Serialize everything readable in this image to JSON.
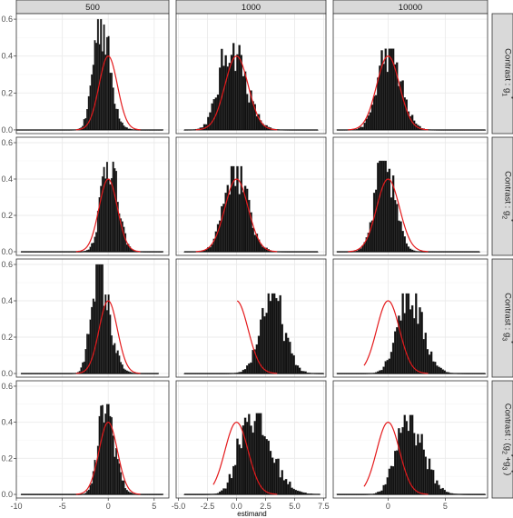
{
  "chart_data": {
    "type": "histogram",
    "facet_columns": [
      "500",
      "1000",
      "10000"
    ],
    "facet_rows": [
      {
        "pre": "Contrast : g",
        "sub": "1",
        "sup": "*",
        "post": ""
      },
      {
        "pre": "Contrast : g",
        "sub": "2",
        "sup": "*",
        "post": ""
      },
      {
        "pre": "Contrast : g",
        "sub": "3",
        "sup": "*",
        "post": ""
      },
      {
        "pre": "Contrast : (g",
        "sub": "2",
        "sup": "*",
        "post": "+g",
        "sub2": "3",
        "sup2": "*",
        "post2": ")"
      }
    ],
    "xlabel": "estimand",
    "ylabel": "",
    "grid": true,
    "columns": [
      {
        "xlim": [
          -10,
          6.6
        ],
        "xticks": [
          {
            "v": -10,
            "t": "-10"
          },
          {
            "v": -5,
            "t": "-5"
          },
          {
            "v": 0,
            "t": "0"
          },
          {
            "v": 5,
            "t": "5"
          }
        ]
      },
      {
        "xlim": [
          -5.2,
          7.7
        ],
        "xticks": [
          {
            "v": -5,
            "t": "-5.0"
          },
          {
            "v": -2.5,
            "t": "-2.5"
          },
          {
            "v": 0,
            "t": "0.0"
          },
          {
            "v": 2.5,
            "t": "2.5"
          },
          {
            "v": 5,
            "t": "5.0"
          },
          {
            "v": 7.5,
            "t": "7.5"
          }
        ]
      },
      {
        "xlim": [
          -4.8,
          8.7
        ],
        "xticks": [
          {
            "v": 0,
            "t": "0"
          },
          {
            "v": 5,
            "t": "5"
          }
        ]
      }
    ],
    "rows": [
      {
        "ylim": [
          -0.02,
          0.63
        ],
        "yticks": [
          {
            "v": 0,
            "t": "0.0"
          },
          {
            "v": 0.2,
            "t": "0.2"
          },
          {
            "v": 0.4,
            "t": "0.4"
          },
          {
            "v": 0.6,
            "t": "0.6"
          }
        ]
      },
      {
        "ylim": [
          -0.02,
          0.63
        ],
        "yticks": [
          {
            "v": 0,
            "t": "0.0"
          },
          {
            "v": 0.2,
            "t": "0.2"
          },
          {
            "v": 0.4,
            "t": "0.4"
          },
          {
            "v": 0.6,
            "t": "0.6"
          }
        ]
      },
      {
        "ylim": [
          -0.02,
          0.63
        ],
        "yticks": [
          {
            "v": 0,
            "t": "0.0"
          },
          {
            "v": 0.2,
            "t": "0.2"
          },
          {
            "v": 0.4,
            "t": "0.4"
          },
          {
            "v": 0.6,
            "t": "0.6"
          }
        ]
      },
      {
        "ylim": [
          -0.02,
          0.63
        ],
        "yticks": [
          {
            "v": 0,
            "t": "0.0"
          },
          {
            "v": 0.2,
            "t": "0.2"
          },
          {
            "v": 0.4,
            "t": "0.4"
          },
          {
            "v": 0.6,
            "t": "0.6"
          }
        ]
      }
    ],
    "panels": [
      [
        {
          "hist": {
            "mean": -0.9,
            "sd": 0.75,
            "peak": 0.6,
            "skew": 0.4,
            "range": [
              -10,
              6
            ]
          },
          "curve": {
            "mean": 0,
            "sd": 1,
            "peak": 0.4,
            "from": -3.5,
            "to": 3.5
          }
        },
        {
          "hist": {
            "mean": -0.5,
            "sd": 0.95,
            "peak": 0.47,
            "skew": 0.3,
            "range": [
              -4.5,
              7
            ]
          },
          "curve": {
            "mean": 0,
            "sd": 1,
            "peak": 0.4,
            "from": -3.5,
            "to": 3.5
          }
        },
        {
          "hist": {
            "mean": 0,
            "sd": 0.9,
            "peak": 0.44,
            "skew": 0.2,
            "range": [
              -4.5,
              8.5
            ]
          },
          "curve": {
            "mean": 0,
            "sd": 1,
            "peak": 0.4,
            "from": -3.5,
            "to": 3.5
          }
        }
      ],
      [
        {
          "hist": {
            "mean": 0,
            "sd": 0.8,
            "peak": 0.52,
            "skew": 0.2,
            "range": [
              -9.5,
              6
            ]
          },
          "curve": {
            "mean": 0,
            "sd": 1,
            "peak": 0.4,
            "from": -3.5,
            "to": 3.5
          }
        },
        {
          "hist": {
            "mean": -0.2,
            "sd": 0.9,
            "peak": 0.47,
            "skew": 0.2,
            "range": [
              -4.5,
              7
            ]
          },
          "curve": {
            "mean": 0,
            "sd": 1,
            "peak": 0.4,
            "from": -3.5,
            "to": 3.5
          }
        },
        {
          "hist": {
            "mean": -0.3,
            "sd": 0.8,
            "peak": 0.5,
            "skew": 0.1,
            "range": [
              -4.5,
              8
            ]
          },
          "curve": {
            "mean": 0,
            "sd": 1,
            "peak": 0.4,
            "from": -3.5,
            "to": 3.5
          }
        }
      ],
      [
        {
          "hist": {
            "mean": -1.2,
            "sd": 0.7,
            "peak": 0.6,
            "skew": 0.7,
            "range": [
              -9.5,
              5.5
            ]
          },
          "curve": {
            "mean": 0,
            "sd": 1,
            "peak": 0.4,
            "from": -3.5,
            "to": 3.5
          }
        },
        {
          "hist": {
            "mean": 3,
            "sd": 0.95,
            "peak": 0.44,
            "skew": 0.1,
            "range": [
              -4.5,
              7.5
            ]
          },
          "curve": {
            "mean": 0,
            "sd": 1,
            "peak": 0.4,
            "from": 0.05,
            "to": 3.5
          }
        },
        {
          "hist": {
            "mean": 1.7,
            "sd": 0.95,
            "peak": 0.44,
            "skew": 0.3,
            "range": [
              -4.5,
              8.5
            ]
          },
          "curve": {
            "mean": 0,
            "sd": 1,
            "peak": 0.4,
            "from": -2.1,
            "to": 3.5
          }
        }
      ],
      [
        {
          "hist": {
            "mean": -0.3,
            "sd": 0.75,
            "peak": 0.5,
            "skew": 0.3,
            "range": [
              -9.5,
              6
            ]
          },
          "curve": {
            "mean": 0,
            "sd": 1,
            "peak": 0.4,
            "from": -3.5,
            "to": 3.5
          }
        },
        {
          "hist": {
            "mean": 1.1,
            "sd": 0.95,
            "peak": 0.45,
            "skew": 0.8,
            "range": [
              -4.5,
              7.2
            ]
          },
          "curve": {
            "mean": 0,
            "sd": 1,
            "peak": 0.4,
            "from": -2,
            "to": 3.5
          }
        },
        {
          "hist": {
            "mean": 1.7,
            "sd": 0.95,
            "peak": 0.44,
            "skew": 0.4,
            "range": [
              -4.5,
              8.5
            ]
          },
          "curve": {
            "mean": 0,
            "sd": 1,
            "peak": 0.4,
            "from": -2.1,
            "to": 3.5
          }
        }
      ]
    ],
    "colors": {
      "bars": "#111111",
      "curve": "#e41a1c",
      "strip_fill": "#d9d9d9",
      "panel_border": "#333333",
      "grid_major": "#ebebeb",
      "grid_minor": "#f5f5f5"
    }
  }
}
